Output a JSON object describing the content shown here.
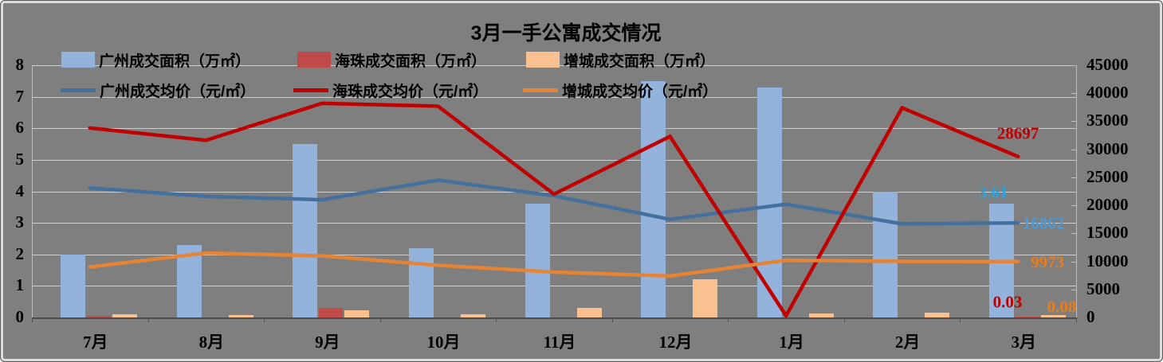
{
  "title": "3月一手公寓成交情况",
  "colors": {
    "background": "#7F7F7F",
    "gridline": "#CFCFCF",
    "bar_guangzhou": "#94B3DC",
    "bar_haizhu": "#BE4B48",
    "bar_zengcheng": "#FAC090",
    "line_guangzhou": "#44709D",
    "line_haizhu": "#C00000",
    "line_zengcheng": "#E58435"
  },
  "chart_data": {
    "type": "combo bar+line",
    "title": "3月一手公寓成交情况",
    "categories": [
      "7月",
      "8月",
      "9月",
      "10月",
      "11月",
      "12月",
      "1月",
      "2月",
      "3月"
    ],
    "bar_series": [
      {
        "name": "广州成交面积（万㎡）",
        "color": "#94B3DC",
        "axis": "left",
        "values": [
          2.0,
          2.3,
          5.5,
          2.2,
          3.6,
          7.5,
          7.3,
          4.0,
          3.61
        ]
      },
      {
        "name": "海珠成交面积（万㎡）",
        "color": "#BE4B48",
        "axis": "left",
        "values": [
          0.04,
          0,
          0.3,
          0,
          0,
          0,
          0,
          0,
          0.03
        ]
      },
      {
        "name": "增城成交面积（万㎡）",
        "color": "#FAC090",
        "axis": "left",
        "values": [
          0.11,
          0.08,
          0.23,
          0.1,
          0.3,
          1.22,
          0.13,
          0.14,
          0.08
        ]
      }
    ],
    "line_series": [
      {
        "name": "广州成交均价（元/㎡）",
        "color": "#44709D",
        "axis": "right",
        "values": [
          23100,
          21600,
          21000,
          24500,
          21700,
          17500,
          20200,
          16700,
          16862
        ]
      },
      {
        "name": "海珠成交均价（元/㎡）",
        "color": "#C00000",
        "axis": "right",
        "values": [
          33800,
          31600,
          38200,
          37700,
          22000,
          32300,
          300,
          37400,
          28697
        ]
      },
      {
        "name": "增城成交均价（元/㎡）",
        "color": "#E58435",
        "axis": "right",
        "values": [
          9000,
          11500,
          11000,
          9300,
          8100,
          7400,
          10200,
          10000,
          9973
        ]
      }
    ],
    "left_axis": {
      "min": 0,
      "max": 8,
      "step": 1
    },
    "right_axis": {
      "min": 0,
      "max": 45000,
      "step": 5000
    },
    "grid": true,
    "legend_position": "top-left",
    "annotations": [
      {
        "text": "28697",
        "color": "#C00000",
        "series": "海珠成交均价（元/㎡）"
      },
      {
        "text": "3.61",
        "color": "#29A3DC",
        "series": "广州成交面积（万㎡）"
      },
      {
        "text": "16862",
        "color": "#4F9BD5",
        "series": "广州成交均价（元/㎡）"
      },
      {
        "text": "9973",
        "color": "#E87D1E",
        "series": "增城成交均价（元/㎡）"
      },
      {
        "text": "0.03",
        "color": "#C00000",
        "series": "海珠成交面积（万㎡）"
      },
      {
        "text": "0.08",
        "color": "#E87D1E",
        "series": "增城成交面积（万㎡）"
      }
    ]
  }
}
